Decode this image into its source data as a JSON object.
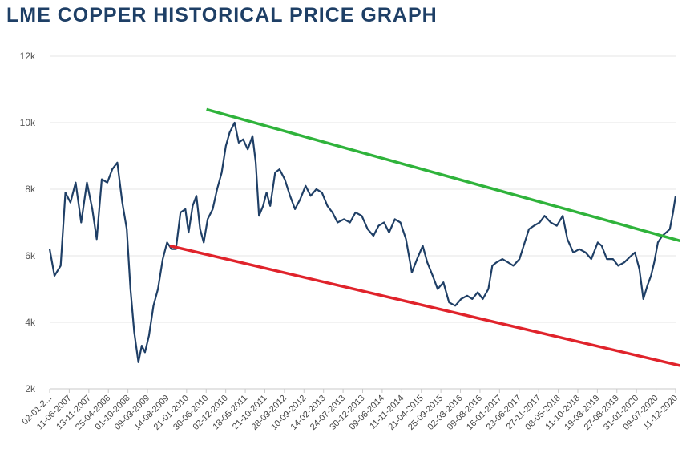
{
  "chart_data": {
    "type": "line",
    "title": "LME COPPER HISTORICAL PRICE GRAPH",
    "xlabel": "",
    "ylabel": "",
    "ylim": [
      2000,
      12000
    ],
    "yticks": [
      2000,
      4000,
      6000,
      8000,
      10000,
      12000
    ],
    "ytick_labels": [
      "2k",
      "4k",
      "6k",
      "8k",
      "10k",
      "12k"
    ],
    "grid": true,
    "colors": {
      "series": "#1f3f66",
      "upper_trend": "#2fb33b",
      "lower_trend": "#e0232b",
      "title": "#1e3f66"
    },
    "x_tick_labels": [
      "02-01-2...",
      "11-06-2007",
      "13-11-2007",
      "25-04-2008",
      "01-10-2008",
      "09-03-2009",
      "14-08-2009",
      "21-01-2010",
      "30-06-2010",
      "02-12-2010",
      "18-05-2011",
      "21-10-2011",
      "28-03-2012",
      "10-09-2012",
      "14-02-2013",
      "24-07-2013",
      "30-12-2013",
      "09-06-2014",
      "11-11-2014",
      "21-04-2015",
      "25-09-2015",
      "02-03-2016",
      "09-08-2016",
      "16-01-2017",
      "23-06-2017",
      "27-11-2017",
      "08-05-2018",
      "11-10-2018",
      "19-03-2019",
      "27-08-2019",
      "31-01-2020",
      "09-07-2020",
      "11-12-2020"
    ],
    "series": [
      {
        "x": [
          "2007-01-02",
          "2007-02-10",
          "2007-04-01",
          "2007-05-10",
          "2007-06-20",
          "2007-08-01",
          "2007-09-15",
          "2007-11-01",
          "2007-12-15",
          "2008-01-20",
          "2008-03-01",
          "2008-04-15",
          "2008-05-25",
          "2008-07-05",
          "2008-08-15",
          "2008-09-20",
          "2008-10-20",
          "2008-11-20",
          "2008-12-24",
          "2009-01-20",
          "2009-02-15",
          "2009-03-20",
          "2009-04-25",
          "2009-06-01",
          "2009-07-10",
          "2009-08-14",
          "2009-09-20",
          "2009-10-25",
          "2009-12-01",
          "2010-01-10",
          "2010-02-05",
          "2010-03-10",
          "2010-04-10",
          "2010-05-10",
          "2010-06-08",
          "2010-07-10",
          "2010-08-20",
          "2010-09-25",
          "2010-11-01",
          "2010-12-05",
          "2011-01-05",
          "2011-02-14",
          "2011-03-20",
          "2011-04-25",
          "2011-06-01",
          "2011-07-10",
          "2011-08-05",
          "2011-09-01",
          "2011-10-04",
          "2011-11-01",
          "2011-12-01",
          "2012-01-10",
          "2012-02-15",
          "2012-03-28",
          "2012-05-10",
          "2012-06-20",
          "2012-08-01",
          "2012-09-14",
          "2012-10-25",
          "2012-12-10",
          "2013-01-25",
          "2013-03-10",
          "2013-04-20",
          "2013-06-01",
          "2013-07-24",
          "2013-09-10",
          "2013-10-25",
          "2013-12-15",
          "2014-02-01",
          "2014-03-20",
          "2014-05-01",
          "2014-06-15",
          "2014-07-25",
          "2014-09-10",
          "2014-10-25",
          "2014-12-10",
          "2015-01-26",
          "2015-03-10",
          "2015-04-25",
          "2015-06-01",
          "2015-07-15",
          "2015-08-24",
          "2015-10-10",
          "2015-11-25",
          "2016-01-15",
          "2016-03-02",
          "2016-04-20",
          "2016-06-01",
          "2016-07-15",
          "2016-08-25",
          "2016-10-10",
          "2016-11-11",
          "2016-12-15",
          "2017-02-01",
          "2017-03-20",
          "2017-05-01",
          "2017-06-20",
          "2017-08-01",
          "2017-09-05",
          "2017-10-15",
          "2017-12-01",
          "2018-01-10",
          "2018-03-01",
          "2018-04-20",
          "2018-06-07",
          "2018-07-15",
          "2018-09-01",
          "2018-10-20",
          "2018-12-10",
          "2019-01-25",
          "2019-03-19",
          "2019-04-20",
          "2019-06-01",
          "2019-07-20",
          "2019-09-01",
          "2019-10-20",
          "2019-12-15",
          "2020-01-15",
          "2020-02-20",
          "2020-03-23",
          "2020-04-25",
          "2020-05-25",
          "2020-06-20",
          "2020-07-20",
          "2020-08-25",
          "2020-09-25",
          "2020-10-25",
          "2020-11-20",
          "2020-12-11"
        ],
        "y": [
          6200,
          5400,
          5700,
          7900,
          7600,
          8200,
          7000,
          8200,
          7400,
          6500,
          8300,
          8200,
          8600,
          8800,
          7600,
          6800,
          5000,
          3700,
          2800,
          3300,
          3100,
          3600,
          4500,
          5000,
          5900,
          6400,
          6200,
          6200,
          7300,
          7400,
          6700,
          7500,
          7800,
          6800,
          6400,
          7100,
          7400,
          8000,
          8500,
          9300,
          9700,
          10000,
          9400,
          9500,
          9200,
          9600,
          8800,
          7200,
          7500,
          7900,
          7500,
          8500,
          8600,
          8300,
          7800,
          7400,
          7700,
          8100,
          7800,
          8000,
          7900,
          7500,
          7300,
          7000,
          7100,
          7000,
          7300,
          7200,
          6800,
          6600,
          6900,
          7000,
          6700,
          7100,
          7000,
          6500,
          5500,
          5900,
          6300,
          5800,
          5400,
          5000,
          5200,
          4600,
          4500,
          4700,
          4800,
          4700,
          4900,
          4700,
          5000,
          5700,
          5800,
          5900,
          5800,
          5700,
          5900,
          6400,
          6800,
          6900,
          7000,
          7200,
          7000,
          6900,
          7200,
          6500,
          6100,
          6200,
          6100,
          5900,
          6400,
          6300,
          5900,
          5900,
          5700,
          5800,
          6000,
          6100,
          5600,
          4700,
          5100,
          5400,
          5800,
          6400,
          6600,
          6700,
          6800,
          7300,
          7800
        ]
      }
    ],
    "trendlines": [
      {
        "color": "#2fb33b",
        "x": [
          "2010-06-30",
          "2021-01-15"
        ],
        "y": [
          10400,
          6450
        ]
      },
      {
        "color": "#e0232b",
        "x": [
          "2009-09-05",
          "2021-01-15"
        ],
        "y": [
          6300,
          2700
        ]
      }
    ]
  }
}
